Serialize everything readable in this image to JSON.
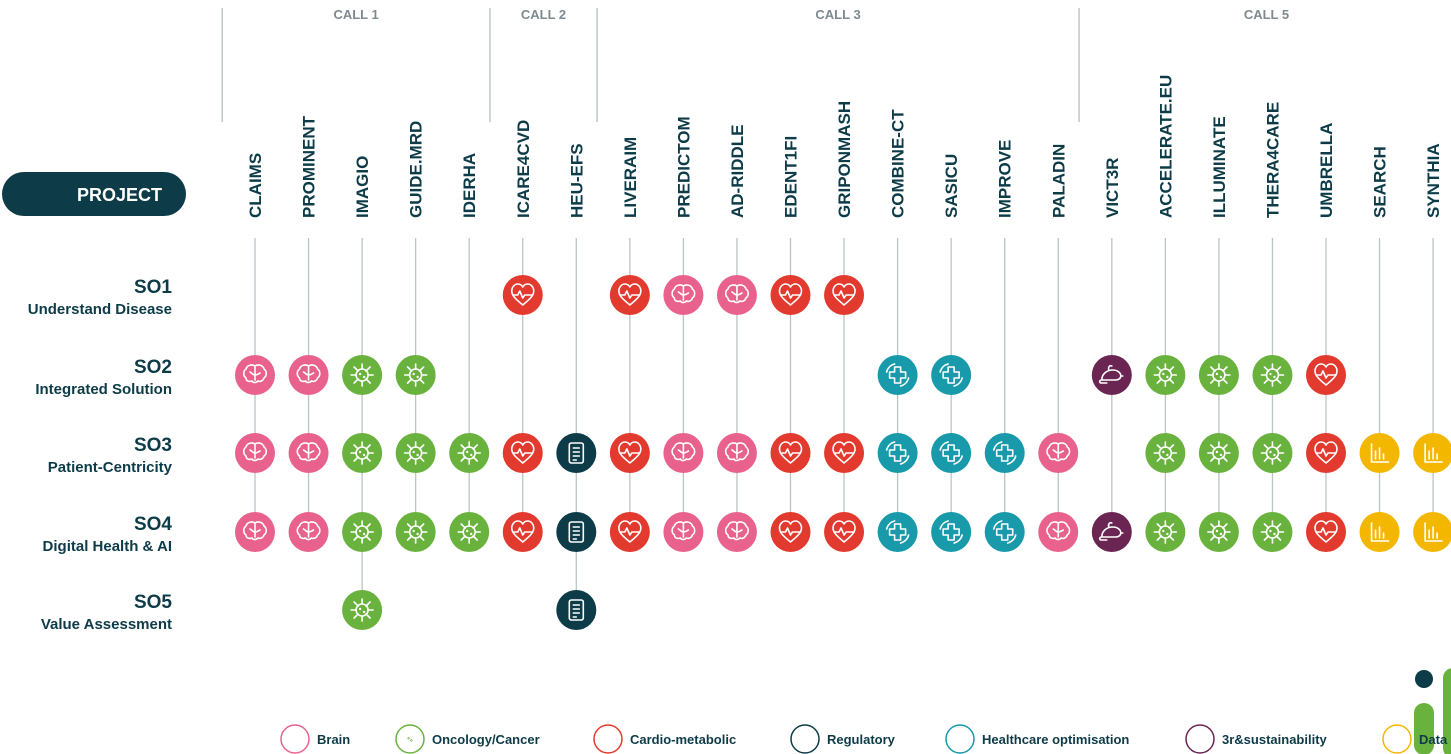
{
  "header": {
    "project": "PROJECT"
  },
  "calls": [
    {
      "label": "CALL 1"
    },
    {
      "label": "CALL 2"
    },
    {
      "label": "CALL 3"
    },
    {
      "label": "CALL 5"
    }
  ],
  "objectives": [
    {
      "code": "SO1",
      "name": "Understand Disease"
    },
    {
      "code": "SO2",
      "name": "Integrated Solution"
    },
    {
      "code": "SO3",
      "name": "Patient-Centricity"
    },
    {
      "code": "SO4",
      "name": "Digital Health & AI"
    },
    {
      "code": "SO5",
      "name": "Value Assessment"
    }
  ],
  "legend": [
    {
      "label": "Brain",
      "color": "#e8628d"
    },
    {
      "label": "Oncology/Cancer",
      "color": "#6ab23e"
    },
    {
      "label": "Cardio-metabolic",
      "color": "#e23a2e"
    },
    {
      "label": "Regulatory",
      "color": "#0d3b47"
    },
    {
      "label": "Healthcare optimisation",
      "color": "#189aab"
    },
    {
      "label": "3r&sustainability",
      "color": "#6a2553"
    },
    {
      "label": "Data",
      "color": "#f4b700"
    }
  ],
  "projects": [
    {
      "name": "CLAIMS",
      "call": "CALL 1",
      "category": "Brain",
      "objectives": [
        "SO2",
        "SO3",
        "SO4"
      ]
    },
    {
      "name": "PROMINENT",
      "call": "CALL 1",
      "category": "Brain",
      "objectives": [
        "SO2",
        "SO3",
        "SO4"
      ]
    },
    {
      "name": "IMAGIO",
      "call": "CALL 1",
      "category": "Oncology/Cancer",
      "objectives": [
        "SO2",
        "SO3",
        "SO4",
        "SO5"
      ]
    },
    {
      "name": "GUIDE.MRD",
      "call": "CALL 1",
      "category": "Oncology/Cancer",
      "objectives": [
        "SO2",
        "SO3",
        "SO4"
      ]
    },
    {
      "name": "IDERHA",
      "call": "CALL 1",
      "category": "Oncology/Cancer",
      "objectives": [
        "SO3",
        "SO4"
      ]
    },
    {
      "name": "ICARE4CVD",
      "call": "CALL 2",
      "category": "Cardio-metabolic",
      "objectives": [
        "SO1",
        "SO3",
        "SO4"
      ]
    },
    {
      "name": "HEU-EFS",
      "call": "CALL 2",
      "category": "Regulatory",
      "objectives": [
        "SO3",
        "SO4",
        "SO5"
      ]
    },
    {
      "name": "LIVERAIM",
      "call": "CALL 3",
      "category": "Cardio-metabolic",
      "objectives": [
        "SO1",
        "SO3",
        "SO4"
      ]
    },
    {
      "name": "PREDICTOM",
      "call": "CALL 3",
      "category": "Brain",
      "objectives": [
        "SO1",
        "SO3",
        "SO4"
      ]
    },
    {
      "name": "AD-RIDDLE",
      "call": "CALL 3",
      "category": "Brain",
      "objectives": [
        "SO1",
        "SO3",
        "SO4"
      ]
    },
    {
      "name": "EDENT1FI",
      "call": "CALL 3",
      "category": "Cardio-metabolic",
      "objectives": [
        "SO1",
        "SO3",
        "SO4"
      ]
    },
    {
      "name": "GRIPONMASH",
      "call": "CALL 3",
      "category": "Cardio-metabolic",
      "objectives": [
        "SO1",
        "SO3",
        "SO4"
      ]
    },
    {
      "name": "COMBINE-CT",
      "call": "CALL 3",
      "category": "Healthcare optimisation",
      "objectives": [
        "SO2",
        "SO3",
        "SO4"
      ]
    },
    {
      "name": "SASICU",
      "call": "CALL 3",
      "category": "Healthcare optimisation",
      "objectives": [
        "SO2",
        "SO3",
        "SO4"
      ]
    },
    {
      "name": "IMPROVE",
      "call": "CALL 3",
      "category": "Healthcare optimisation",
      "objectives": [
        "SO3",
        "SO4"
      ]
    },
    {
      "name": "PALADIN",
      "call": "CALL 3",
      "category": "Brain",
      "objectives": [
        "SO3",
        "SO4"
      ]
    },
    {
      "name": "VICT3R",
      "call": "CALL 5",
      "category": "3r&sustainability",
      "objectives": [
        "SO2",
        "SO4"
      ]
    },
    {
      "name": "ACCELERATE.EU",
      "call": "CALL 5",
      "category": "Oncology/Cancer",
      "objectives": [
        "SO2",
        "SO3",
        "SO4"
      ]
    },
    {
      "name": "ILLUMINATE",
      "call": "CALL 5",
      "category": "Oncology/Cancer",
      "objectives": [
        "SO2",
        "SO3",
        "SO4"
      ]
    },
    {
      "name": "THERA4CARE",
      "call": "CALL 5",
      "category": "Oncology/Cancer",
      "objectives": [
        "SO2",
        "SO3",
        "SO4"
      ]
    },
    {
      "name": "UMBRELLA",
      "call": "CALL 5",
      "category": "Cardio-metabolic",
      "objectives": [
        "SO2",
        "SO3",
        "SO4"
      ]
    },
    {
      "name": "SEARCH",
      "call": "CALL 5",
      "category": "Data",
      "objectives": [
        "SO3",
        "SO4"
      ]
    },
    {
      "name": "SYNTHIA",
      "call": "CALL 5",
      "category": "Data",
      "objectives": [
        "SO3",
        "SO4"
      ]
    }
  ]
}
